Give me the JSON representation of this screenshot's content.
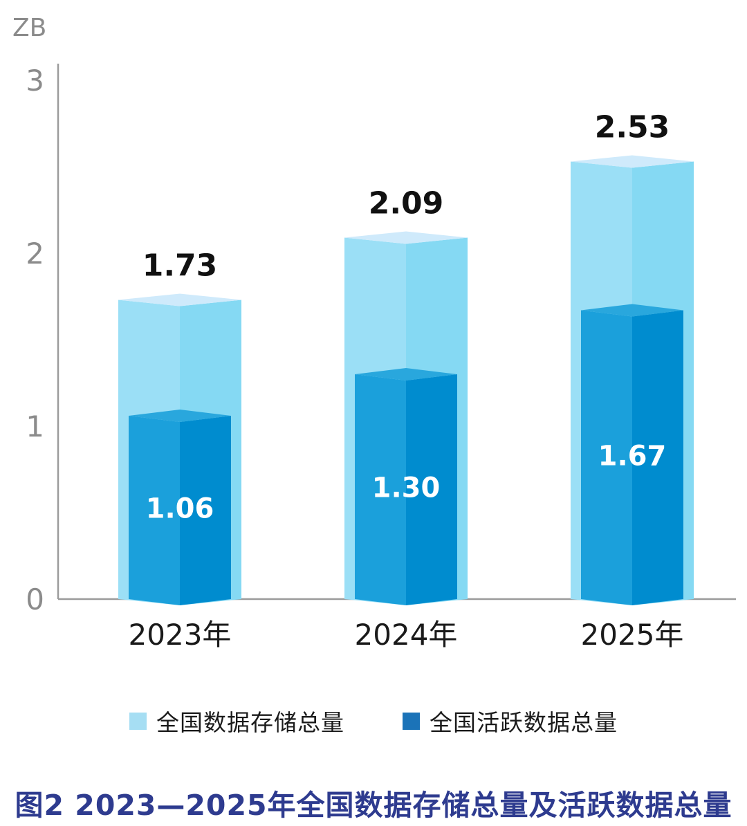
{
  "unit_label": "ZB",
  "chart_data": {
    "type": "bar",
    "title": "",
    "categories": [
      "2023年",
      "2024年",
      "2025年"
    ],
    "series": [
      {
        "name": "全国数据存储总量",
        "values": [
          1.73,
          2.09,
          2.53
        ],
        "labels": [
          "1.73",
          "2.09",
          "2.53"
        ]
      },
      {
        "name": "全国活跃数据总量",
        "values": [
          1.06,
          1.3,
          1.67
        ],
        "labels": [
          "1.06",
          "1.30",
          "1.67"
        ]
      }
    ],
    "ylabel": "ZB",
    "yticks": [
      0,
      1,
      2,
      3
    ],
    "ylim": [
      0,
      3
    ],
    "grid": false,
    "legend_position": "bottom"
  },
  "colors": {
    "light_left": "#9bdff6",
    "light_right": "#85d9f3",
    "light_top": "#cfeafb",
    "dark_left": "#1ba0db",
    "dark_right": "#008ccf",
    "dark_top": "#29a7dd",
    "legend_light": "#a6def3",
    "legend_dark": "#1b73b8",
    "axis": "#9b9b9b",
    "tick_text": "#8b8b8b",
    "value_label": "#111111",
    "inside_label": "#ffffff",
    "category_label": "#1a1a1a",
    "caption": "#2e3b8f"
  },
  "legend": {
    "items": [
      {
        "label": "全国数据存储总量",
        "color_key": "legend_light"
      },
      {
        "label": "全国活跃数据总量",
        "color_key": "legend_dark"
      }
    ]
  },
  "caption": {
    "text": "图2 2023—2025年全国数据存储总量及活跃数据总量"
  }
}
